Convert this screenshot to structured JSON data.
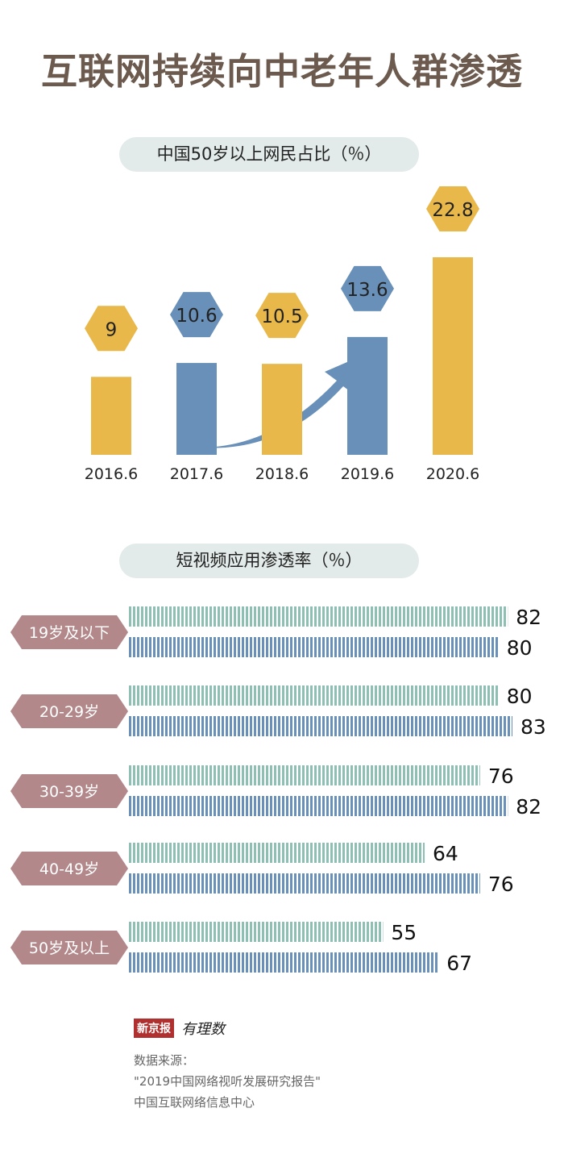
{
  "title": "互联网持续向中老年人群渗透",
  "colors": {
    "gold": "#E9B84A",
    "blue": "#6890B8",
    "teal": "#8DBFB3",
    "label_bg": "#B2888A",
    "arrow": "#6890B8",
    "title": "#6B5A4D"
  },
  "chart_data": [
    {
      "type": "bar",
      "title": "中国50岁以上网民占比（％）",
      "categories": [
        "2016.6",
        "2017.6",
        "2018.6",
        "2019.6",
        "2020.6"
      ],
      "values": [
        9,
        10.6,
        10.5,
        13.6,
        22.8
      ],
      "value_labels": [
        "9",
        "10.6",
        "10.5",
        "13.6",
        "22.8"
      ],
      "bar_colors": [
        "#E9B84A",
        "#6890B8",
        "#E9B84A",
        "#6890B8",
        "#E9B84A"
      ],
      "ylim": [
        0,
        24
      ],
      "xlabel": "",
      "ylabel": ""
    },
    {
      "type": "bar",
      "orientation": "horizontal",
      "title": "短视频应用渗透率（％）",
      "categories": [
        "19岁及以下",
        "20-29岁",
        "30-39岁",
        "40-49岁",
        "50岁及以上"
      ],
      "series": [
        {
          "values": [
            82,
            80,
            76,
            64,
            55
          ],
          "color": "#8DBFB3"
        },
        {
          "values": [
            80,
            83,
            82,
            76,
            67
          ],
          "color": "#6890B8"
        }
      ],
      "xlim": [
        0,
        83
      ],
      "xlabel": "",
      "ylabel": ""
    }
  ],
  "logo": {
    "main": "新京报",
    "sub": "有理数"
  },
  "source": {
    "label": "数据来源：",
    "line1": "\"2019中国网络视听发展研究报告\"",
    "line2": "中国互联网络信息中心"
  }
}
